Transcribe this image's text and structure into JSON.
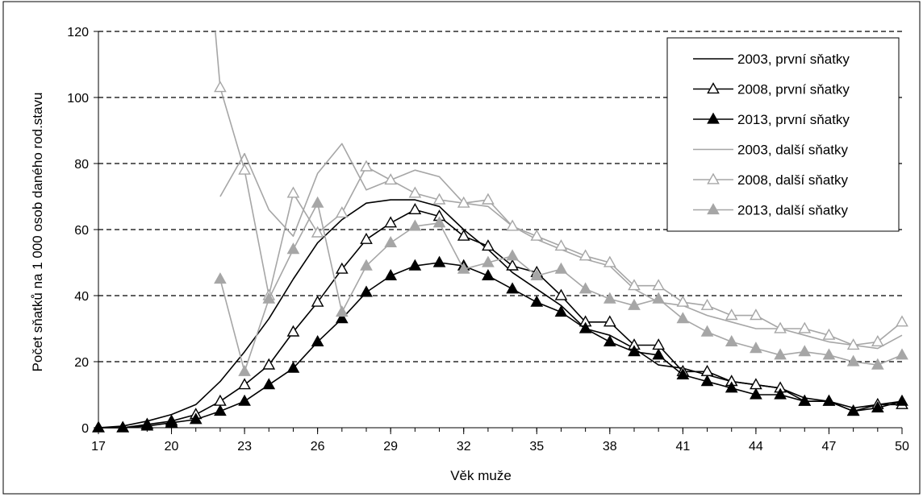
{
  "chart_data": {
    "type": "line",
    "xlabel": "Věk muže",
    "ylabel": "Počet sňatků na 1 000 osob daného rod.stavu",
    "xlim": [
      17,
      50
    ],
    "ylim": [
      0,
      120
    ],
    "x_ticks": [
      17,
      20,
      23,
      26,
      29,
      32,
      35,
      38,
      41,
      44,
      47,
      50
    ],
    "y_ticks": [
      0,
      20,
      40,
      60,
      80,
      100,
      120
    ],
    "grid": "horizontal-dashed",
    "legend_position": "top-right",
    "x": [
      17,
      18,
      19,
      20,
      21,
      22,
      23,
      24,
      25,
      26,
      27,
      28,
      29,
      30,
      31,
      32,
      33,
      34,
      35,
      36,
      37,
      38,
      39,
      40,
      41,
      42,
      43,
      44,
      45,
      46,
      47,
      48,
      49,
      50
    ],
    "series": [
      {
        "name": "2003, první sňatky",
        "color": "#000000",
        "marker": "none",
        "values": [
          0,
          0.5,
          2,
          4,
          7,
          14,
          23,
          33,
          45,
          56,
          63,
          68,
          69,
          69,
          67,
          60,
          54,
          47,
          42,
          37,
          30,
          28,
          24,
          19,
          18,
          16,
          14,
          13,
          12,
          9,
          8,
          6,
          7,
          8
        ]
      },
      {
        "name": "2008, první sňatky",
        "color": "#000000",
        "marker": "triangle-open",
        "values": [
          0,
          0,
          1,
          2,
          4,
          8,
          13,
          19,
          29,
          38,
          48,
          57,
          62,
          66,
          64,
          58,
          55,
          49,
          47,
          40,
          32,
          32,
          25,
          25,
          17,
          17,
          14,
          13,
          12,
          8,
          8,
          5,
          7,
          7
        ]
      },
      {
        "name": "2013, první sňatky",
        "color": "#000000",
        "marker": "triangle-filled",
        "values": [
          0,
          0,
          0.5,
          1.5,
          2.5,
          5,
          8,
          13,
          18,
          26,
          33,
          41,
          46,
          49,
          50,
          49,
          46,
          42,
          38,
          35,
          30,
          26,
          23,
          22,
          16,
          14,
          12,
          10,
          10,
          8,
          8,
          5,
          6,
          8
        ]
      },
      {
        "name": "2003, další sňatky",
        "color": "#a6a6a6",
        "marker": "none",
        "values": [
          null,
          null,
          null,
          null,
          null,
          70,
          83,
          66,
          58,
          77,
          86,
          72,
          75,
          78,
          76,
          68,
          67,
          61,
          57,
          54,
          51,
          49,
          42,
          38,
          37,
          34,
          32,
          30,
          30,
          28,
          26,
          25,
          24,
          28
        ]
      },
      {
        "name": "2008, další sňatky",
        "color": "#a6a6a6",
        "marker": "triangle-open",
        "values": [
          null,
          null,
          null,
          null,
          null,
          103,
          78,
          40,
          71,
          59,
          65,
          79,
          75,
          71,
          69,
          68,
          69,
          61,
          58,
          55,
          52,
          50,
          43,
          43,
          38,
          37,
          34,
          34,
          30,
          30,
          28,
          25,
          26,
          32
        ]
      },
      {
        "name": "2013, další sňatky",
        "color": "#a6a6a6",
        "marker": "triangle-filled",
        "values": [
          null,
          null,
          null,
          null,
          null,
          45,
          17,
          39,
          54,
          68,
          35,
          49,
          56,
          61,
          62,
          48,
          50,
          52,
          46,
          48,
          42,
          39,
          37,
          39,
          33,
          29,
          26,
          24,
          22,
          23,
          22,
          20,
          19,
          22
        ]
      }
    ],
    "extra_segments": [
      {
        "series": "2008, další sňatky",
        "x": [
          21.8,
          22
        ],
        "y": [
          120,
          103
        ]
      }
    ]
  }
}
